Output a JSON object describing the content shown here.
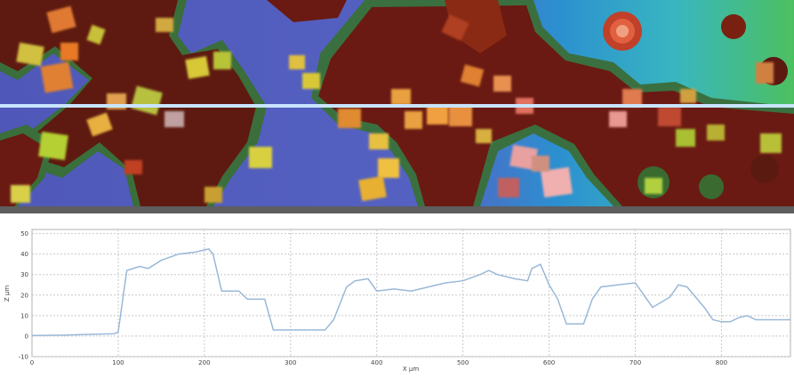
{
  "chart_data": {
    "type": "line",
    "xlabel": "X µm",
    "ylabel": "Z µm",
    "xlim": [
      0,
      880
    ],
    "ylim": [
      -10,
      52
    ],
    "x_ticks": [
      "0",
      "100",
      "200",
      "300",
      "400",
      "500",
      "600",
      "700",
      "800"
    ],
    "y_ticks": [
      "-10",
      "0",
      "10",
      "20",
      "30",
      "40",
      "50"
    ],
    "grid": true,
    "series": [
      {
        "color": "#9ab8d8",
        "points": [
          [
            0,
            0.3
          ],
          [
            40,
            0.5
          ],
          [
            60,
            0.8
          ],
          [
            95,
            1.2
          ],
          [
            100,
            2
          ],
          [
            110,
            32
          ],
          [
            125,
            34
          ],
          [
            135,
            33
          ],
          [
            150,
            37
          ],
          [
            170,
            40
          ],
          [
            190,
            41
          ],
          [
            205,
            42.5
          ],
          [
            210,
            40
          ],
          [
            220,
            22
          ],
          [
            240,
            22
          ],
          [
            250,
            18
          ],
          [
            270,
            18
          ],
          [
            280,
            3
          ],
          [
            300,
            3
          ],
          [
            340,
            3
          ],
          [
            350,
            8
          ],
          [
            365,
            24
          ],
          [
            375,
            27
          ],
          [
            390,
            28
          ],
          [
            400,
            22
          ],
          [
            420,
            23
          ],
          [
            440,
            22
          ],
          [
            460,
            24
          ],
          [
            480,
            26
          ],
          [
            500,
            27
          ],
          [
            520,
            30
          ],
          [
            530,
            32
          ],
          [
            540,
            30
          ],
          [
            560,
            28
          ],
          [
            575,
            27
          ],
          [
            580,
            33
          ],
          [
            590,
            35
          ],
          [
            600,
            25
          ],
          [
            610,
            18
          ],
          [
            620,
            6
          ],
          [
            640,
            6
          ],
          [
            650,
            18
          ],
          [
            660,
            24
          ],
          [
            680,
            25
          ],
          [
            700,
            26
          ],
          [
            710,
            20
          ],
          [
            720,
            14
          ],
          [
            740,
            19
          ],
          [
            750,
            25
          ],
          [
            760,
            24
          ],
          [
            770,
            19
          ],
          [
            780,
            14
          ],
          [
            790,
            8
          ],
          [
            800,
            7
          ],
          [
            810,
            7
          ],
          [
            820,
            9
          ],
          [
            830,
            10
          ],
          [
            840,
            8
          ],
          [
            860,
            8
          ],
          [
            880,
            8
          ]
        ]
      }
    ]
  },
  "map": {
    "scan_line_color": "#c8e4ff",
    "colors": {
      "low": "#5560c0",
      "mid_low": "#2ea0d8",
      "mid": "#3fb88a",
      "high": "#e07818",
      "crystal_dark": "#7a1810",
      "crystal_yellow": "#d8c838"
    }
  }
}
